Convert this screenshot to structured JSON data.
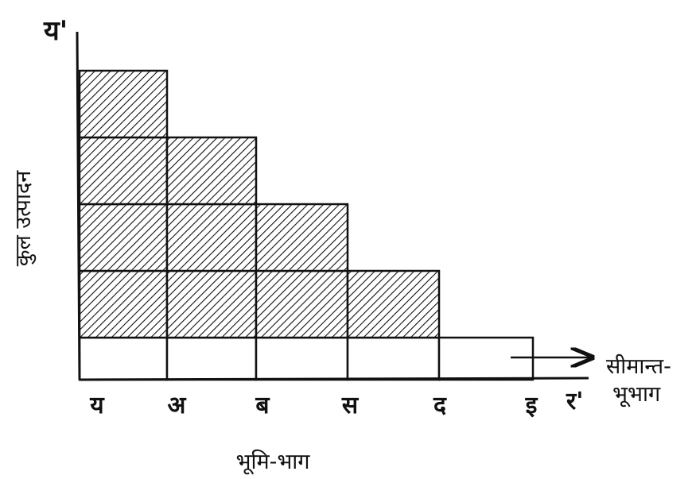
{
  "diagram": {
    "y_axis_symbol": "य'",
    "y_axis_label": "कुल उत्पादन",
    "x_axis_label": "भूमि-भाग",
    "x_axis_end_symbol": "र'",
    "marginal_label_line1": "सीमान्त-",
    "marginal_label_line2": "भूभाग",
    "plot_labels": [
      "य",
      "अ",
      "ब",
      "स",
      "द",
      "इ"
    ],
    "column_hatched_units": [
      4,
      3,
      2,
      1,
      0
    ],
    "column_total_units": [
      5,
      4,
      3,
      2,
      1
    ]
  }
}
